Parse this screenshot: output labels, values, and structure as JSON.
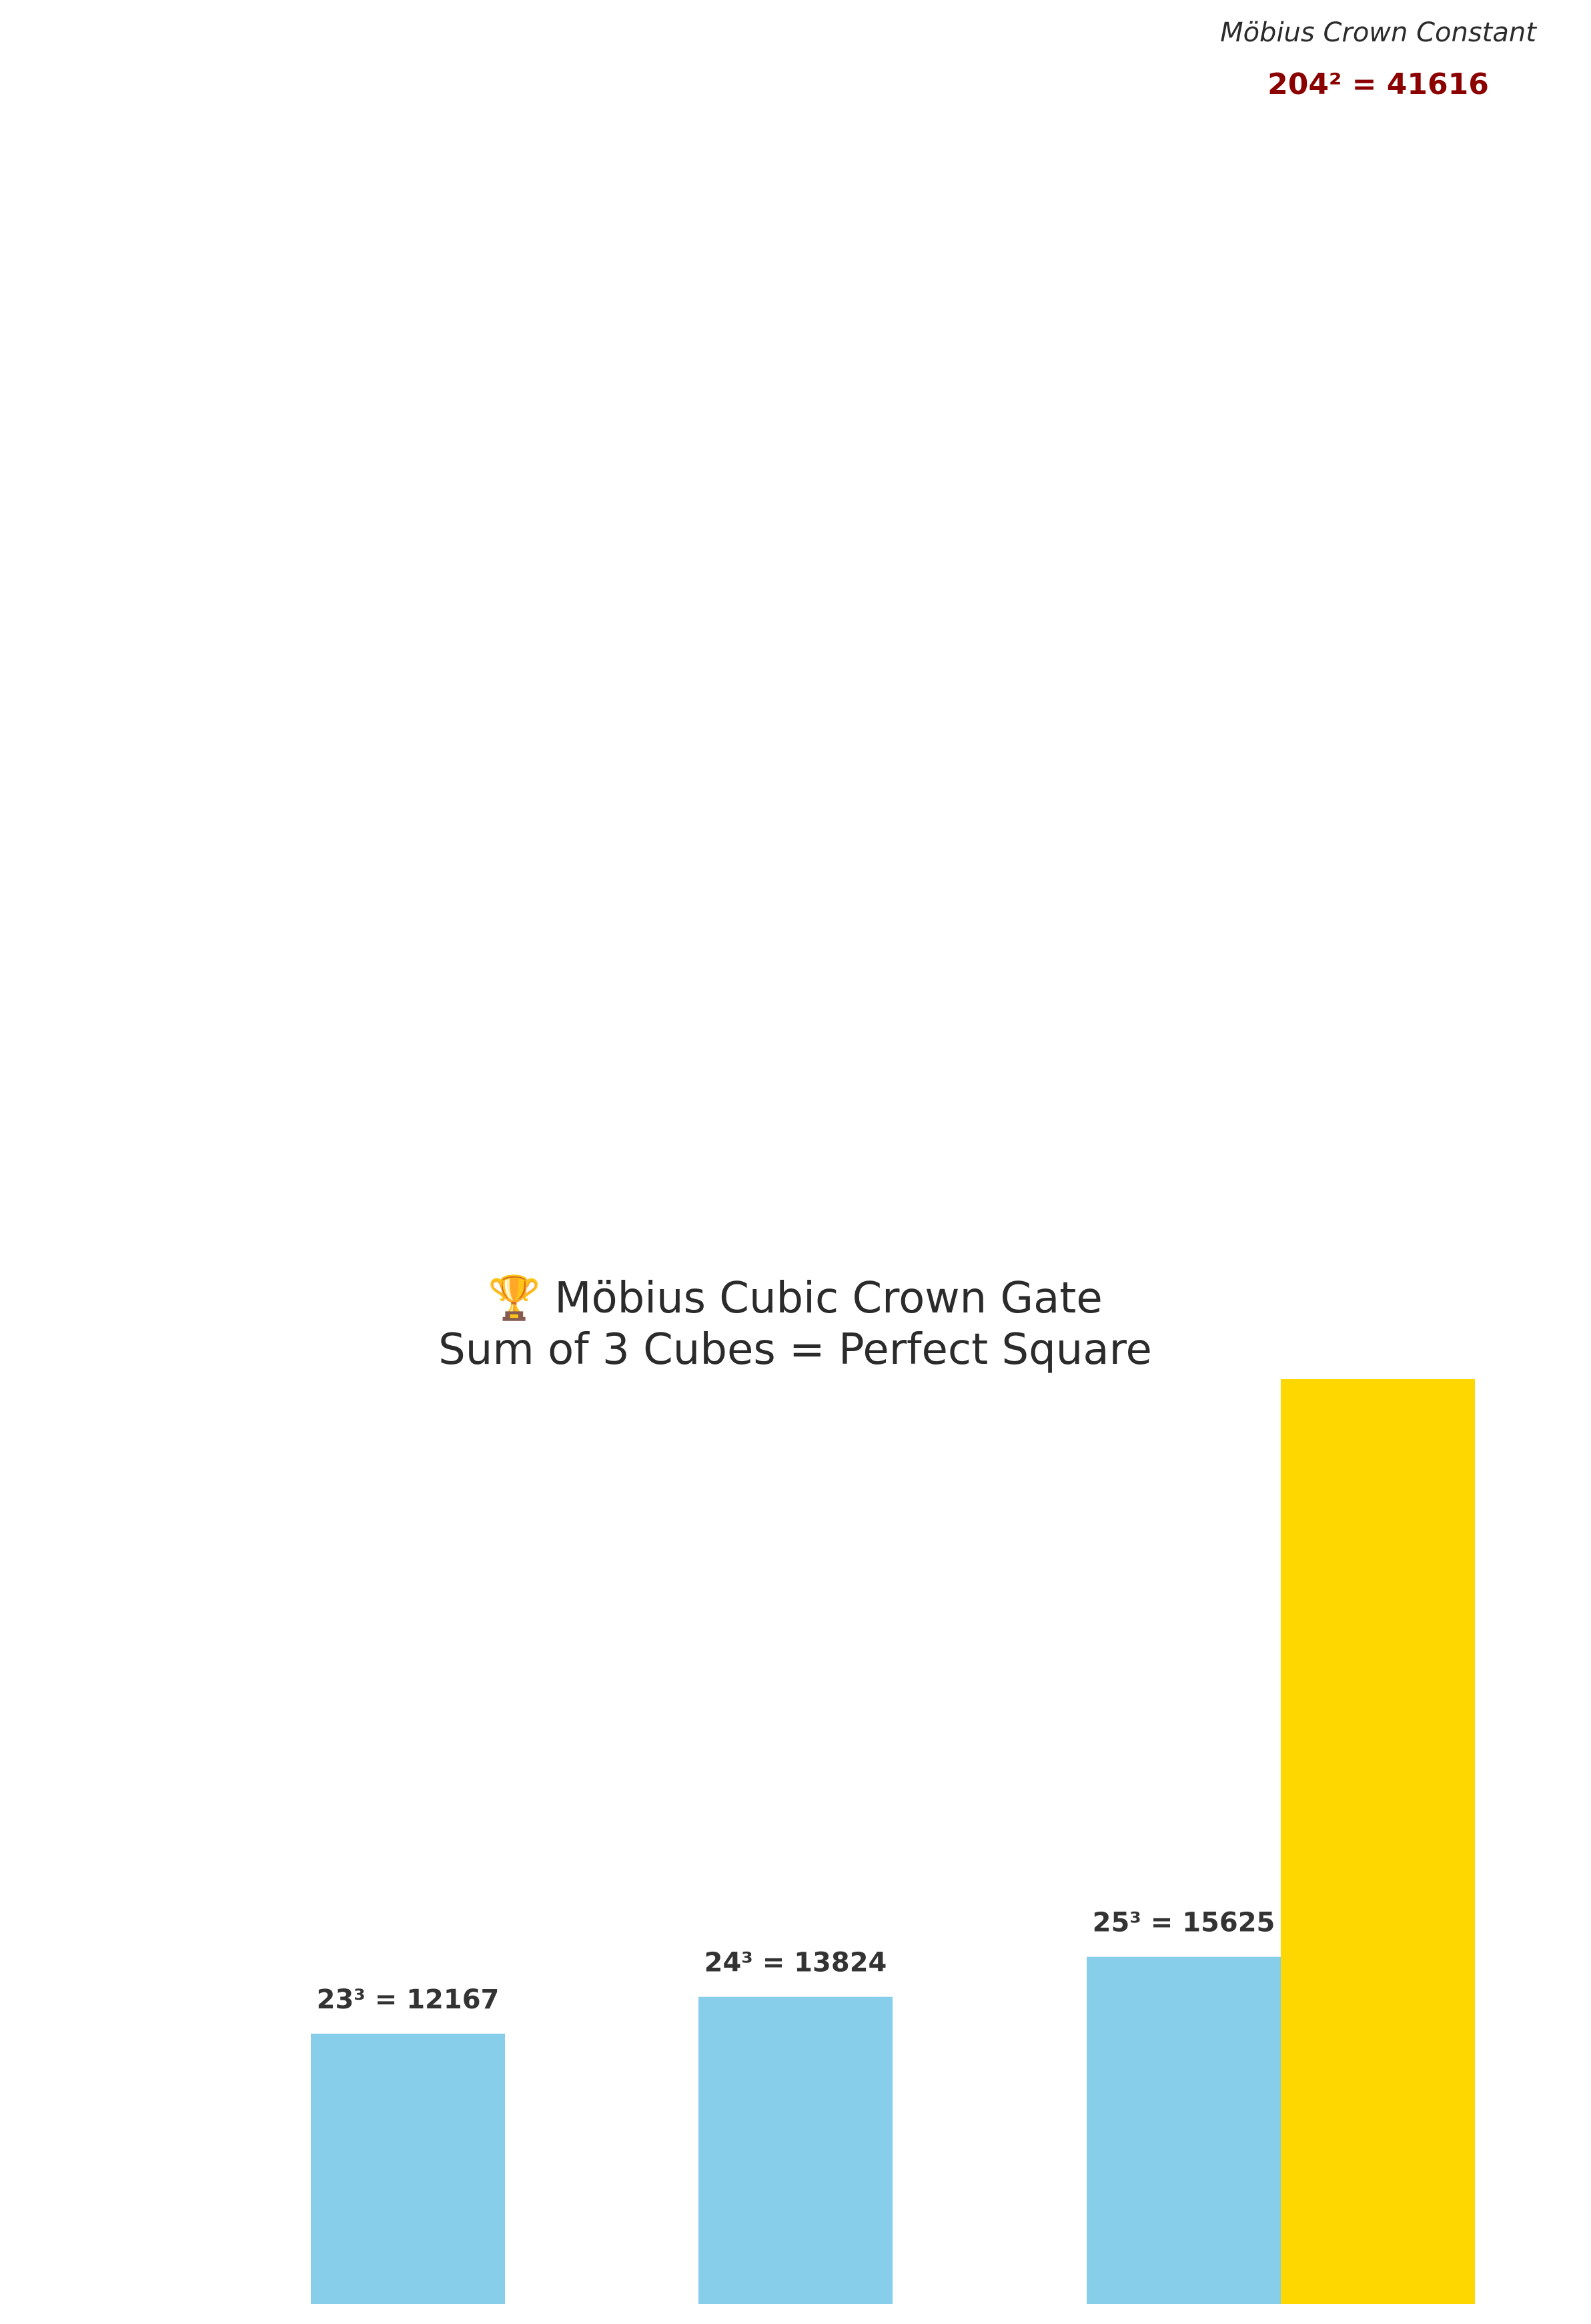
{
  "chart_data": {
    "type": "bar",
    "title_lines": [
      "🏆 Möbius Cubic Crown Gate",
      "Sum of 3 Cubes = Perfect Square"
    ],
    "categories": [
      "23³",
      "24³",
      "25³",
      "204²"
    ],
    "series": [
      {
        "values": [
          12167,
          13824,
          15625,
          41616
        ],
        "labels": [
          "23³ = 12167",
          "24³ = 13824",
          "25³ = 15625",
          ""
        ],
        "colors": [
          "#87CEEB",
          "#87CEEB",
          "#87CEEB",
          "#FFD700"
        ]
      }
    ],
    "annotation": {
      "label": "Möbius Crown Constant",
      "value_text": "204² = 41616"
    },
    "grid": false,
    "axes_visible": false
  }
}
